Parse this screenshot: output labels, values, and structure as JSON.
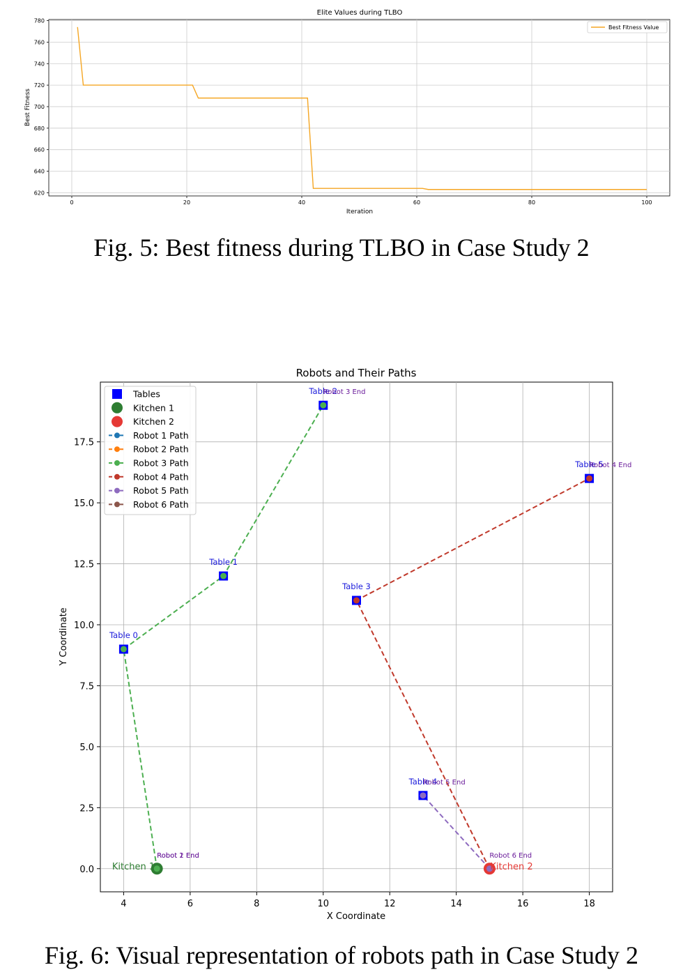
{
  "figure5": {
    "caption": "Fig. 5: Best fitness during TLBO in Case Study 2",
    "chart_data": {
      "type": "line",
      "title": "Elite Values during TLBO",
      "xlabel": "Iteration",
      "ylabel": "Best Fitness",
      "xlim": [
        -4,
        104
      ],
      "ylim": [
        617,
        781
      ],
      "xticks": [
        0,
        20,
        40,
        60,
        80,
        100
      ],
      "yticks": [
        620,
        640,
        660,
        680,
        700,
        720,
        740,
        760,
        780
      ],
      "grid": true,
      "legend_position": "top-right",
      "series": [
        {
          "name": "Best Fitness Value",
          "color": "#f5a623",
          "x": [
            1,
            2,
            21,
            22,
            41,
            42,
            61,
            62,
            100
          ],
          "y": [
            774,
            720,
            720,
            708,
            708,
            624,
            624,
            623,
            623
          ]
        }
      ]
    }
  },
  "figure6": {
    "caption": "Fig. 6: Visual representation of robots path in Case Study 2",
    "chart_data": {
      "type": "scatter",
      "title": "Robots and Their Paths",
      "xlabel": "X Coordinate",
      "ylabel": "Y Coordinate",
      "xlim": [
        3.3,
        18.7
      ],
      "ylim": [
        -0.95,
        19.95
      ],
      "xticks": [
        4,
        6,
        8,
        10,
        12,
        14,
        16,
        18
      ],
      "yticks": [
        0.0,
        2.5,
        5.0,
        7.5,
        10.0,
        12.5,
        15.0,
        17.5
      ],
      "grid": true,
      "legend_position": "top-left",
      "tables": [
        {
          "label": "Table 0",
          "x": 4,
          "y": 9
        },
        {
          "label": "Table 1",
          "x": 7,
          "y": 12
        },
        {
          "label": "Table 2",
          "x": 10,
          "y": 19
        },
        {
          "label": "Table 3",
          "x": 11,
          "y": 11
        },
        {
          "label": "Table 4",
          "x": 13,
          "y": 3
        },
        {
          "label": "Table 5",
          "x": 18,
          "y": 16
        }
      ],
      "kitchens": [
        {
          "label": "Kitchen 1",
          "x": 5,
          "y": 0,
          "color": "#2e7d32"
        },
        {
          "label": "Kitchen 2",
          "x": 15,
          "y": 0,
          "color": "#e53935"
        }
      ],
      "paths": [
        {
          "name": "Robot 1 Path",
          "color": "#1f77b4",
          "points": [
            [
              5,
              0
            ]
          ]
        },
        {
          "name": "Robot 2 Path",
          "color": "#ff7f0e",
          "points": [
            [
              5,
              0
            ]
          ]
        },
        {
          "name": "Robot 3 Path",
          "color": "#4caf50",
          "points": [
            [
              5,
              0
            ],
            [
              4,
              9
            ],
            [
              7,
              12
            ],
            [
              10,
              19
            ]
          ]
        },
        {
          "name": "Robot 4 Path",
          "color": "#c0392b",
          "points": [
            [
              15,
              0
            ],
            [
              11,
              11
            ],
            [
              18,
              16
            ]
          ]
        },
        {
          "name": "Robot 5 Path",
          "color": "#8e6bbf",
          "points": [
            [
              15,
              0
            ],
            [
              13,
              3
            ]
          ]
        },
        {
          "name": "Robot 6 Path",
          "color": "#8c564b",
          "points": [
            [
              15,
              0
            ]
          ]
        }
      ],
      "end_labels": [
        {
          "text": "Robot 1 End",
          "x": 5,
          "y": 0
        },
        {
          "text": "Robot 2 End",
          "x": 5,
          "y": 0
        },
        {
          "text": "Robot 3 End",
          "x": 10,
          "y": 19
        },
        {
          "text": "Robot 4 End",
          "x": 18,
          "y": 16
        },
        {
          "text": "Robot 5 End",
          "x": 13,
          "y": 3
        },
        {
          "text": "Robot 6 End",
          "x": 15,
          "y": 0
        }
      ],
      "legend": [
        {
          "label": "Tables",
          "marker": "square",
          "color": "#0000ff"
        },
        {
          "label": "Kitchen 1",
          "marker": "circle",
          "color": "#2e7d32"
        },
        {
          "label": "Kitchen 2",
          "marker": "circle",
          "color": "#e53935"
        },
        {
          "label": "Robot 1 Path",
          "marker": "line",
          "color": "#1f77b4"
        },
        {
          "label": "Robot 2 Path",
          "marker": "line",
          "color": "#ff7f0e"
        },
        {
          "label": "Robot 3 Path",
          "marker": "line",
          "color": "#4caf50"
        },
        {
          "label": "Robot 4 Path",
          "marker": "line",
          "color": "#c0392b"
        },
        {
          "label": "Robot 5 Path",
          "marker": "line",
          "color": "#8e6bbf"
        },
        {
          "label": "Robot 6 Path",
          "marker": "line",
          "color": "#8c564b"
        }
      ]
    }
  }
}
